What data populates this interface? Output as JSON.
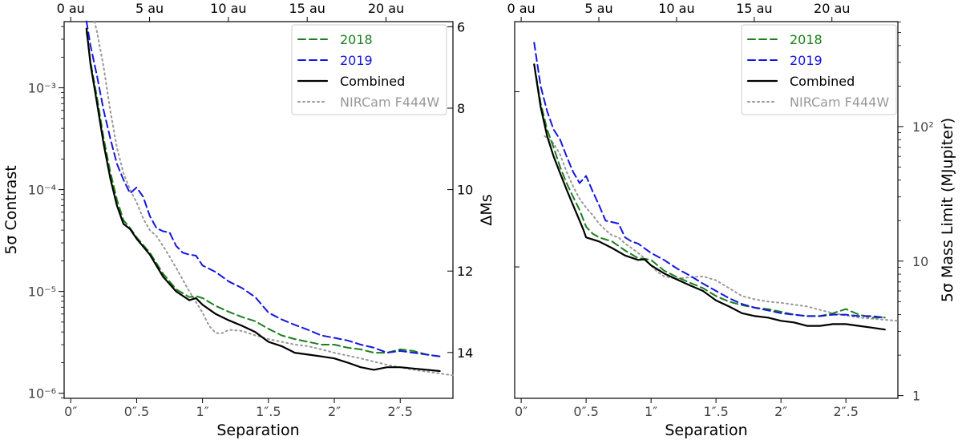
{
  "chart_data": [
    {
      "type": "line",
      "panel": "left",
      "xlabel": "Separation",
      "ylabel": "5σ Contrast",
      "ylabel_right": "ΔMs",
      "x_ticks": [
        "0″",
        "0″.5",
        "1″",
        "1″.5",
        "2″",
        "2″.5"
      ],
      "x_top_ticks": [
        "0 au",
        "5 au",
        "10 au",
        "15 au",
        "20 au"
      ],
      "y_ticks": [
        "10⁻⁶",
        "10⁻⁵",
        "10⁻⁴",
        "10⁻³"
      ],
      "y_right_ticks": [
        "6",
        "8",
        "10",
        "12",
        "14"
      ],
      "xlim": [
        -0.05,
        2.9
      ],
      "ylim_log10": [
        -6.05,
        -2.35
      ],
      "legend": [
        "2018",
        "2019",
        "Combined",
        "NIRCam F444W"
      ],
      "series": [
        {
          "name": "2018",
          "color": "#1a7f1a",
          "style": "dashed",
          "x": [
            0.12,
            0.15,
            0.2,
            0.25,
            0.3,
            0.35,
            0.4,
            0.45,
            0.5,
            0.6,
            0.7,
            0.8,
            0.9,
            0.95,
            1.0,
            1.1,
            1.2,
            1.3,
            1.4,
            1.5,
            1.6,
            1.7,
            1.8,
            1.9,
            2.0,
            2.1,
            2.2,
            2.3,
            2.4,
            2.5,
            2.6,
            2.7,
            2.8
          ],
          "y": [
            0.0036,
            0.0018,
            0.0008,
            0.00032,
            0.00015,
            8e-05,
            5e-05,
            4.2e-05,
            3.4e-05,
            2.4e-05,
            1.5e-05,
            1.05e-05,
            8.8e-06,
            9e-06,
            8.6e-06,
            7.2e-06,
            6.3e-06,
            5.6e-06,
            5.1e-06,
            4.3e-06,
            3.7e-06,
            3.4e-06,
            3.2e-06,
            3e-06,
            3e-06,
            2.8e-06,
            2.7e-06,
            2.5e-06,
            2.5e-06,
            2.7e-06,
            2.6e-06,
            2.4e-06,
            2.3e-06
          ]
        },
        {
          "name": "2019",
          "color": "#1515e0",
          "style": "dashed",
          "x": [
            0.12,
            0.15,
            0.2,
            0.25,
            0.3,
            0.35,
            0.4,
            0.45,
            0.5,
            0.55,
            0.6,
            0.65,
            0.7,
            0.75,
            0.8,
            0.85,
            0.9,
            0.95,
            1.0,
            1.1,
            1.2,
            1.3,
            1.4,
            1.5,
            1.6,
            1.7,
            1.8,
            1.9,
            2.0,
            2.1,
            2.2,
            2.3,
            2.4,
            2.5,
            2.6,
            2.7,
            2.8
          ],
          "y": [
            0.0045,
            0.0026,
            0.0013,
            0.0006,
            0.00032,
            0.00018,
            0.000125,
            9.2e-05,
            0.000105,
            8.5e-05,
            5.5e-05,
            4.2e-05,
            3.9e-05,
            3.8e-05,
            2.8e-05,
            2.4e-05,
            2.3e-05,
            2.25e-05,
            1.8e-05,
            1.55e-05,
            1.25e-05,
            1.08e-05,
            8.8e-06,
            6.2e-06,
            5.3e-06,
            4.7e-06,
            4.2e-06,
            3.7e-06,
            3.5e-06,
            3.3e-06,
            3e-06,
            2.8e-06,
            2.5e-06,
            2.6e-06,
            2.5e-06,
            2.4e-06,
            2.3e-06
          ]
        },
        {
          "name": "Combined",
          "color": "#000000",
          "style": "solid",
          "x": [
            0.12,
            0.15,
            0.2,
            0.25,
            0.3,
            0.35,
            0.4,
            0.45,
            0.5,
            0.6,
            0.7,
            0.8,
            0.9,
            0.95,
            1.0,
            1.1,
            1.2,
            1.3,
            1.4,
            1.5,
            1.6,
            1.7,
            1.8,
            1.9,
            2.0,
            2.1,
            2.2,
            2.3,
            2.4,
            2.5,
            2.6,
            2.7,
            2.8
          ],
          "y": [
            0.0038,
            0.0017,
            0.0007,
            0.00028,
            0.00013,
            7e-05,
            4.6e-05,
            4.1e-05,
            3.3e-05,
            2.3e-05,
            1.4e-05,
            1e-05,
            8.2e-06,
            8.6e-06,
            7.4e-06,
            6e-06,
            5.2e-06,
            4.6e-06,
            4e-06,
            3.2e-06,
            2.9e-06,
            2.5e-06,
            2.4e-06,
            2.3e-06,
            2.2e-06,
            2e-06,
            1.8e-06,
            1.7e-06,
            1.8e-06,
            1.8e-06,
            1.75e-06,
            1.7e-06,
            1.65e-06
          ]
        },
        {
          "name": "NIRCam F444W",
          "color": "#999999",
          "style": "dotted",
          "x": [
            0.18,
            0.2,
            0.25,
            0.3,
            0.35,
            0.4,
            0.45,
            0.5,
            0.55,
            0.6,
            0.65,
            0.7,
            0.75,
            0.8,
            0.85,
            0.9,
            1.0,
            1.05,
            1.1,
            1.15,
            1.2,
            1.3,
            1.4,
            1.5,
            1.6,
            1.7,
            1.8,
            1.9,
            2.0,
            2.2,
            2.4,
            2.6,
            2.9
          ],
          "y": [
            0.0045,
            0.0035,
            0.0016,
            0.0006,
            0.00026,
            0.000145,
            0.0001,
            7.5e-05,
            5.2e-05,
            4e-05,
            3.5e-05,
            2.8e-05,
            2.2e-05,
            1.7e-05,
            1.3e-05,
            1e-05,
            6.2e-06,
            4.6e-06,
            3.9e-06,
            3.9e-06,
            4.2e-06,
            4.1e-06,
            3.7e-06,
            3.4e-06,
            3.2e-06,
            3e-06,
            2.9e-06,
            2.7e-06,
            2.5e-06,
            2.2e-06,
            1.9e-06,
            1.7e-06,
            1.5e-06
          ]
        }
      ]
    },
    {
      "type": "line",
      "panel": "right",
      "xlabel": "Separation",
      "ylabel_right": "5σ Mass Limit (MJupiter)",
      "x_ticks": [
        "0″",
        "0″.5",
        "1″",
        "1″.5",
        "2″",
        "2″.5"
      ],
      "x_top_ticks": [
        "0 au",
        "5 au",
        "10 au",
        "15 au",
        "20 au"
      ],
      "y_right_ticks": [
        "1",
        "10",
        "10²"
      ],
      "xlim": [
        -0.05,
        2.9
      ],
      "ylim_log10": [
        -0.02,
        2.78
      ],
      "legend": [
        "2018",
        "2019",
        "Combined",
        "NIRCam F444W"
      ],
      "series": [
        {
          "name": "2018",
          "color": "#1a7f1a",
          "style": "dashed",
          "x": [
            0.1,
            0.15,
            0.2,
            0.25,
            0.3,
            0.35,
            0.4,
            0.45,
            0.5,
            0.55,
            0.6,
            0.7,
            0.8,
            0.9,
            0.95,
            1.0,
            1.1,
            1.2,
            1.3,
            1.4,
            1.5,
            1.6,
            1.7,
            1.8,
            1.9,
            2.0,
            2.1,
            2.2,
            2.3,
            2.4,
            2.5,
            2.6,
            2.7,
            2.8
          ],
          "y": [
            290,
            150,
            95,
            70,
            50,
            38,
            30,
            24,
            18,
            16,
            15,
            14,
            12,
            10.5,
            10.4,
            10.2,
            8.5,
            7.6,
            6.9,
            6.3,
            5.5,
            5.0,
            4.7,
            4.5,
            4.4,
            4.2,
            4.0,
            3.9,
            3.9,
            4.1,
            4.4,
            4.0,
            3.8,
            3.8
          ]
        },
        {
          "name": "2019",
          "color": "#1515e0",
          "style": "dashed",
          "x": [
            0.1,
            0.15,
            0.2,
            0.25,
            0.3,
            0.35,
            0.4,
            0.45,
            0.5,
            0.55,
            0.6,
            0.65,
            0.7,
            0.75,
            0.8,
            0.85,
            0.9,
            1.0,
            1.1,
            1.2,
            1.3,
            1.4,
            1.5,
            1.6,
            1.7,
            1.8,
            1.9,
            2.0,
            2.1,
            2.2,
            2.3,
            2.4,
            2.5,
            2.6,
            2.7,
            2.8
          ],
          "y": [
            420,
            200,
            130,
            95,
            80,
            60,
            46,
            38,
            43,
            33,
            26,
            20,
            19.5,
            19,
            15,
            14,
            13.5,
            11.5,
            10.2,
            8.8,
            7.8,
            6.8,
            6.0,
            5.3,
            4.8,
            4.5,
            4.3,
            4.1,
            4.0,
            3.9,
            3.9,
            4.0,
            4.0,
            3.9,
            3.9,
            3.8
          ]
        },
        {
          "name": "Combined",
          "color": "#000000",
          "style": "solid",
          "x": [
            0.1,
            0.15,
            0.2,
            0.25,
            0.3,
            0.35,
            0.4,
            0.45,
            0.48,
            0.5,
            0.6,
            0.7,
            0.8,
            0.9,
            0.95,
            1.0,
            1.1,
            1.2,
            1.3,
            1.4,
            1.5,
            1.6,
            1.7,
            1.8,
            1.9,
            2.0,
            2.1,
            2.2,
            2.3,
            2.4,
            2.5,
            2.6,
            2.7,
            2.8
          ],
          "y": [
            290,
            140,
            85,
            60,
            45,
            34,
            26,
            20,
            17,
            15,
            14,
            12.5,
            11,
            10.2,
            10.3,
            9.3,
            8.1,
            7.3,
            6.6,
            6.0,
            5.1,
            4.6,
            4.1,
            3.9,
            3.8,
            3.6,
            3.5,
            3.3,
            3.3,
            3.4,
            3.4,
            3.3,
            3.2,
            3.1
          ]
        },
        {
          "name": "NIRCam F444W",
          "color": "#999999",
          "style": "dotted",
          "x": [
            0.18,
            0.22,
            0.25,
            0.3,
            0.35,
            0.4,
            0.45,
            0.5,
            0.55,
            0.6,
            0.65,
            0.7,
            0.75,
            0.8,
            0.85,
            0.9,
            0.95,
            1.0,
            1.05,
            1.1,
            1.2,
            1.3,
            1.4,
            1.5,
            1.6,
            1.7,
            1.8,
            1.9,
            2.0,
            2.2,
            2.4,
            2.6,
            2.9
          ],
          "y": [
            85,
            80,
            75,
            62,
            46,
            36,
            29,
            25,
            22,
            19,
            17,
            15.5,
            15,
            13.5,
            12.5,
            11.5,
            10.5,
            9.3,
            8.3,
            7.7,
            7.4,
            7.6,
            7.7,
            7.2,
            6.3,
            5.5,
            5.2,
            5.0,
            4.9,
            4.6,
            4.1,
            3.8,
            3.6
          ]
        }
      ]
    }
  ]
}
